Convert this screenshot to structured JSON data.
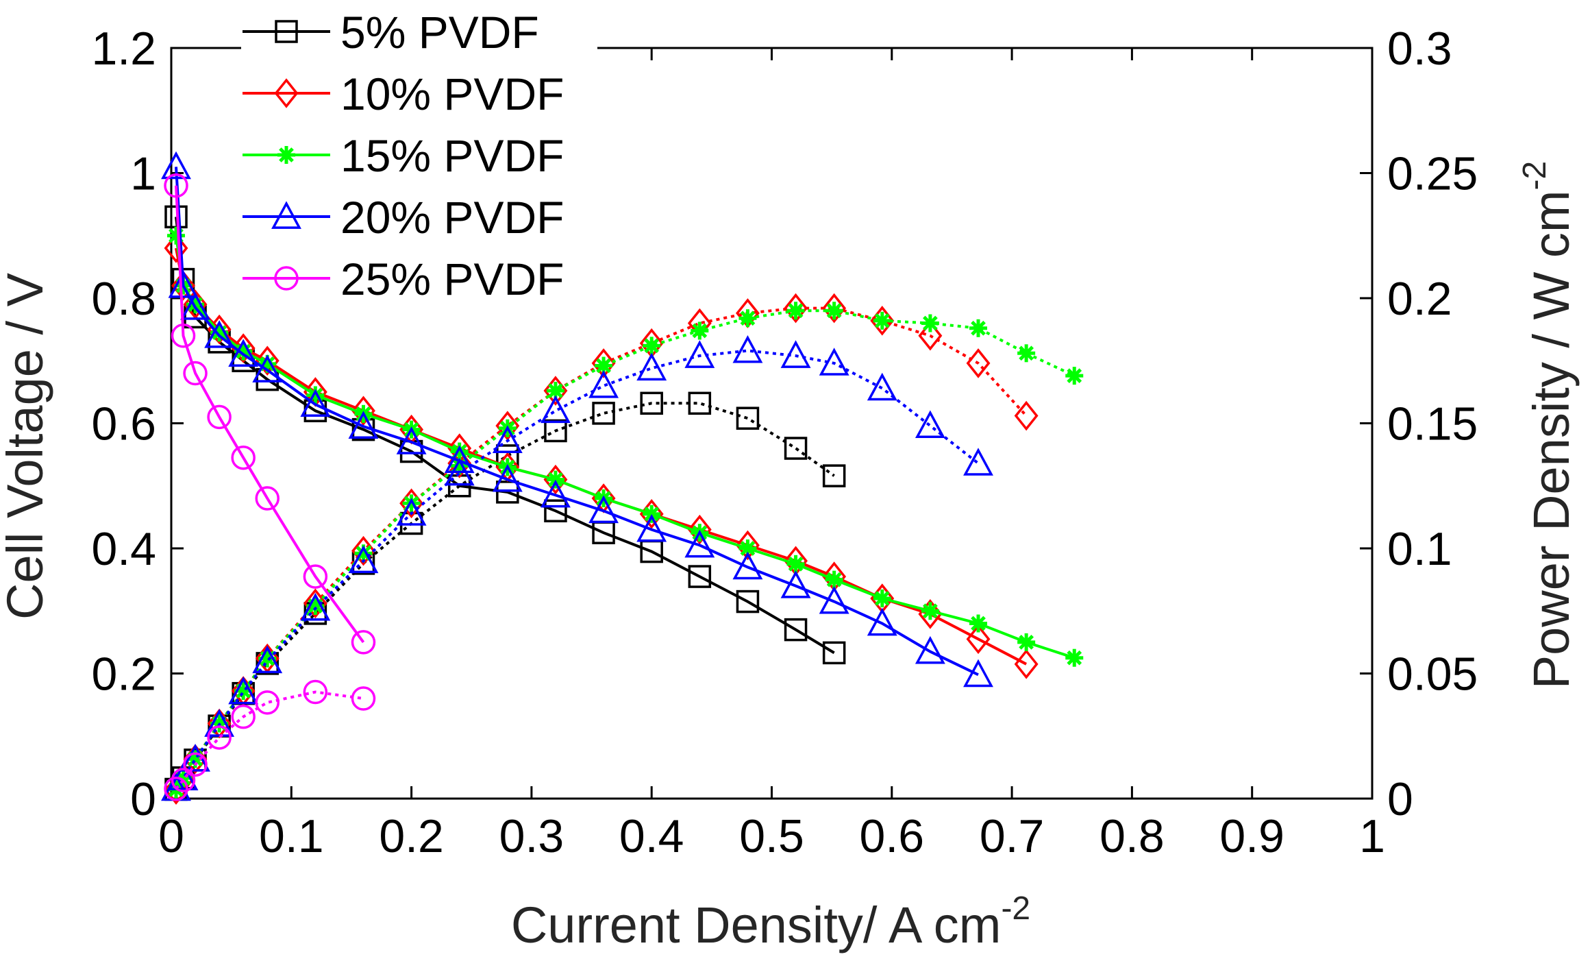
{
  "chart_data": {
    "type": "line",
    "title": "",
    "xlabel": "Current Density/ A cm",
    "xlabel_superscript": "-2",
    "ylabel_left": "Cell Voltage / V",
    "ylabel_right": "Power Density / W cm",
    "ylabel_right_superscript": "-2",
    "xlim": [
      0,
      1
    ],
    "ylim_left": [
      0,
      1.2
    ],
    "ylim_right": [
      0,
      0.3
    ],
    "xticks": [
      "0",
      "0.1",
      "0.2",
      "0.3",
      "0.4",
      "0.5",
      "0.6",
      "0.7",
      "0.8",
      "0.9",
      "1"
    ],
    "yticks_left": [
      "0",
      "0.2",
      "0.4",
      "0.6",
      "0.8",
      "1",
      "1.2"
    ],
    "yticks_right": [
      "0",
      "0.05",
      "0.1",
      "0.15",
      "0.2",
      "0.25",
      "0.3"
    ],
    "legend_position": "top-left",
    "series": [
      {
        "name": "5% PVDF",
        "color": "#000000",
        "marker": "square",
        "x": [
          0.004,
          0.01,
          0.02,
          0.04,
          0.06,
          0.08,
          0.12,
          0.16,
          0.2,
          0.24,
          0.28,
          0.32,
          0.36,
          0.4,
          0.44,
          0.48,
          0.52,
          0.552
        ],
        "voltage": [
          0.93,
          0.83,
          0.77,
          0.73,
          0.7,
          0.67,
          0.62,
          0.59,
          0.555,
          0.5,
          0.49,
          0.46,
          0.425,
          0.395,
          0.355,
          0.315,
          0.27,
          0.233
        ],
        "power": [
          0.0037,
          0.0083,
          0.0154,
          0.029,
          0.042,
          0.054,
          0.074,
          0.094,
          0.11,
          0.125,
          0.137,
          0.147,
          0.154,
          0.158,
          0.158,
          0.152,
          0.14,
          0.129
        ]
      },
      {
        "name": "10% PVDF",
        "color": "#ff0000",
        "marker": "diamond",
        "x": [
          0.004,
          0.01,
          0.02,
          0.04,
          0.06,
          0.08,
          0.12,
          0.16,
          0.2,
          0.24,
          0.28,
          0.32,
          0.36,
          0.4,
          0.44,
          0.48,
          0.52,
          0.552,
          0.592,
          0.632,
          0.672,
          0.712
        ],
        "voltage": [
          0.88,
          0.82,
          0.79,
          0.75,
          0.72,
          0.7,
          0.65,
          0.62,
          0.59,
          0.56,
          0.53,
          0.51,
          0.48,
          0.455,
          0.43,
          0.405,
          0.38,
          0.355,
          0.32,
          0.295,
          0.255,
          0.215
        ],
        "power": [
          0.0035,
          0.0082,
          0.0158,
          0.03,
          0.043,
          0.056,
          0.078,
          0.099,
          0.118,
          0.134,
          0.149,
          0.163,
          0.174,
          0.182,
          0.19,
          0.194,
          0.196,
          0.196,
          0.191,
          0.185,
          0.174,
          0.153
        ]
      },
      {
        "name": "15% PVDF",
        "color": "#00ff00",
        "marker": "asterisk",
        "x": [
          0.004,
          0.01,
          0.02,
          0.04,
          0.06,
          0.08,
          0.12,
          0.16,
          0.2,
          0.24,
          0.28,
          0.32,
          0.36,
          0.4,
          0.44,
          0.48,
          0.52,
          0.552,
          0.592,
          0.632,
          0.672,
          0.712,
          0.752
        ],
        "voltage": [
          0.9,
          0.82,
          0.79,
          0.745,
          0.715,
          0.695,
          0.645,
          0.615,
          0.59,
          0.555,
          0.53,
          0.51,
          0.48,
          0.455,
          0.425,
          0.4,
          0.375,
          0.35,
          0.32,
          0.3,
          0.28,
          0.25,
          0.225
        ],
        "power": [
          0.0036,
          0.0082,
          0.0158,
          0.03,
          0.043,
          0.056,
          0.077,
          0.098,
          0.118,
          0.133,
          0.148,
          0.163,
          0.173,
          0.181,
          0.187,
          0.192,
          0.195,
          0.195,
          0.191,
          0.19,
          0.188,
          0.178,
          0.169
        ]
      },
      {
        "name": "20% PVDF",
        "color": "#0000ff",
        "marker": "triangle",
        "x": [
          0.004,
          0.01,
          0.02,
          0.04,
          0.06,
          0.08,
          0.12,
          0.16,
          0.2,
          0.24,
          0.28,
          0.32,
          0.36,
          0.4,
          0.44,
          0.48,
          0.52,
          0.552,
          0.592,
          0.632,
          0.672
        ],
        "voltage": [
          1.01,
          0.82,
          0.785,
          0.74,
          0.71,
          0.685,
          0.63,
          0.595,
          0.57,
          0.54,
          0.51,
          0.485,
          0.46,
          0.43,
          0.405,
          0.37,
          0.34,
          0.315,
          0.28,
          0.235,
          0.198
        ],
        "power": [
          0.004,
          0.0082,
          0.0157,
          0.0296,
          0.0426,
          0.055,
          0.076,
          0.095,
          0.114,
          0.13,
          0.143,
          0.155,
          0.165,
          0.172,
          0.177,
          0.179,
          0.177,
          0.174,
          0.164,
          0.149,
          0.134
        ]
      },
      {
        "name": "25% PVDF",
        "color": "#ff00ff",
        "marker": "circle",
        "x": [
          0.004,
          0.01,
          0.02,
          0.04,
          0.06,
          0.08,
          0.12,
          0.16
        ],
        "voltage": [
          0.98,
          0.74,
          0.68,
          0.61,
          0.545,
          0.48,
          0.355,
          0.25
        ],
        "power": [
          0.0039,
          0.0074,
          0.0136,
          0.0244,
          0.0327,
          0.0384,
          0.0426,
          0.04
        ]
      }
    ]
  }
}
